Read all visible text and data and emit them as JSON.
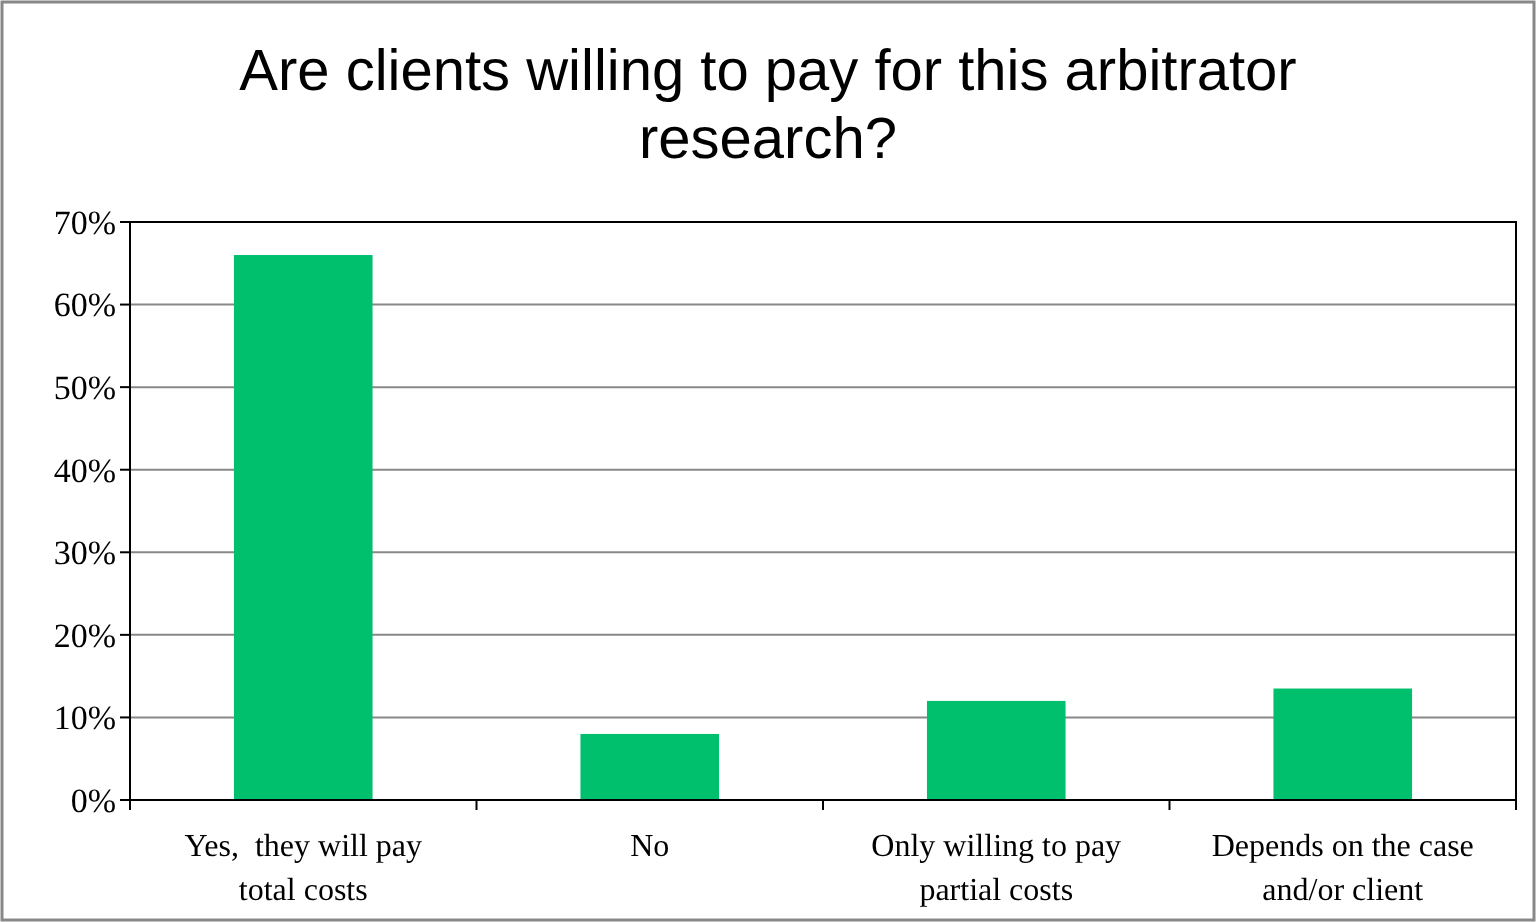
{
  "chart_data": {
    "type": "bar",
    "title": "Are clients willing to pay for this arbitrator research?",
    "categories": [
      "Yes,  they will pay total costs",
      "No",
      "Only willing to pay partial costs",
      "Depends on the case and/or client"
    ],
    "values": [
      66,
      8,
      12,
      13.5
    ],
    "color": "#00c06e",
    "ylim": [
      0,
      70
    ],
    "yticks": [
      {
        "value": 0,
        "label": "0%"
      },
      {
        "value": 10,
        "label": "10%"
      },
      {
        "value": 20,
        "label": "20%"
      },
      {
        "value": 30,
        "label": "30%"
      },
      {
        "value": 40,
        "label": "40%"
      },
      {
        "value": 50,
        "label": "50%"
      },
      {
        "value": 60,
        "label": "60%"
      },
      {
        "value": 70,
        "label": "70%"
      }
    ],
    "grid": "y"
  }
}
